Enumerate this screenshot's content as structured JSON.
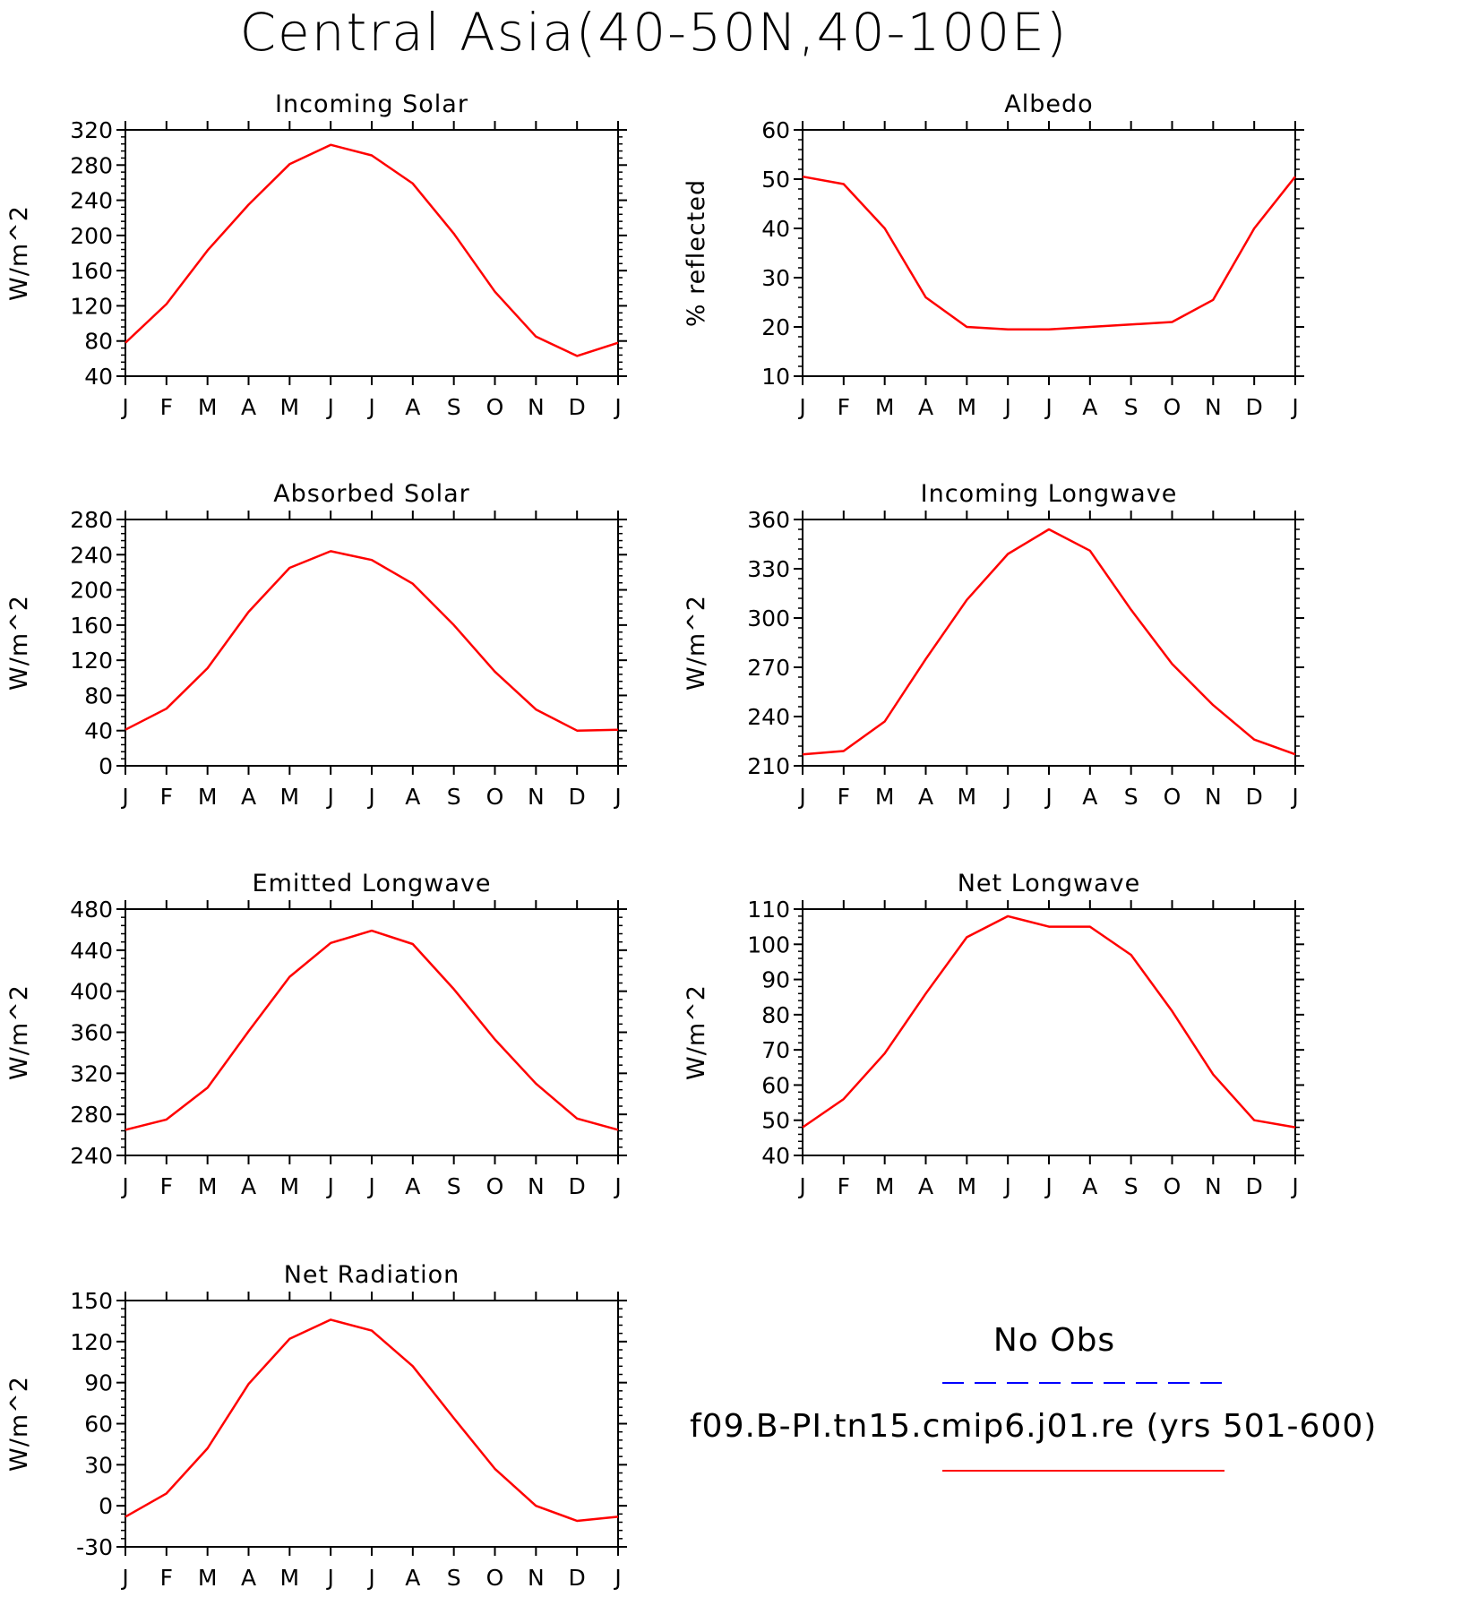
{
  "title": "Central Asia(40-50N,40-100E)",
  "months": [
    "J",
    "F",
    "M",
    "A",
    "M",
    "J",
    "J",
    "A",
    "S",
    "O",
    "N",
    "D",
    "J"
  ],
  "colors": {
    "series": "#ff0000",
    "obs": "#0000ff",
    "axis": "#000000"
  },
  "legend": {
    "obs_label": "No Obs",
    "model_label": "f09.B-PI.tn15.cmip6.j01.re (yrs 501-600)"
  },
  "chart_data": [
    {
      "type": "line",
      "title": "Incoming Solar",
      "ylabel": "W/m^2",
      "ylim": [
        40,
        320
      ],
      "yticks": [
        40,
        80,
        120,
        160,
        200,
        240,
        280,
        320
      ],
      "categories": [
        "J",
        "F",
        "M",
        "A",
        "M",
        "J",
        "J",
        "A",
        "S",
        "O",
        "N",
        "D",
        "J"
      ],
      "values": [
        78,
        122,
        183,
        235,
        281,
        303,
        291,
        259,
        202,
        136,
        85,
        63,
        78
      ]
    },
    {
      "type": "line",
      "title": "Albedo",
      "ylabel": "% reflected",
      "ylim": [
        10,
        60
      ],
      "yticks": [
        10,
        20,
        30,
        40,
        50,
        60
      ],
      "categories": [
        "J",
        "F",
        "M",
        "A",
        "M",
        "J",
        "J",
        "A",
        "S",
        "O",
        "N",
        "D",
        "J"
      ],
      "values": [
        50.5,
        49.0,
        40.0,
        26.0,
        20.0,
        19.5,
        19.5,
        20.0,
        20.5,
        21.0,
        25.5,
        40.0,
        50.5
      ]
    },
    {
      "type": "line",
      "title": "Absorbed Solar",
      "ylabel": "W/m^2",
      "ylim": [
        0,
        280
      ],
      "yticks": [
        0,
        40,
        80,
        120,
        160,
        200,
        240,
        280
      ],
      "categories": [
        "J",
        "F",
        "M",
        "A",
        "M",
        "J",
        "J",
        "A",
        "S",
        "O",
        "N",
        "D",
        "J"
      ],
      "values": [
        41,
        65,
        111,
        175,
        225,
        244,
        234,
        207,
        160,
        107,
        64,
        40,
        41
      ]
    },
    {
      "type": "line",
      "title": "Incoming Longwave",
      "ylabel": "W/m^2",
      "ylim": [
        210,
        360
      ],
      "yticks": [
        210,
        240,
        270,
        300,
        330,
        360
      ],
      "categories": [
        "J",
        "F",
        "M",
        "A",
        "M",
        "J",
        "J",
        "A",
        "S",
        "O",
        "N",
        "D",
        "J"
      ],
      "values": [
        217,
        219,
        237,
        275,
        311,
        339,
        354,
        341,
        305,
        272,
        247,
        226,
        217
      ]
    },
    {
      "type": "line",
      "title": "Emitted Longwave",
      "ylabel": "W/m^2",
      "ylim": [
        240,
        480
      ],
      "yticks": [
        240,
        280,
        320,
        360,
        400,
        440,
        480
      ],
      "categories": [
        "J",
        "F",
        "M",
        "A",
        "M",
        "J",
        "J",
        "A",
        "S",
        "O",
        "N",
        "D",
        "J"
      ],
      "values": [
        265,
        275,
        306,
        361,
        414,
        447,
        459,
        446,
        402,
        353,
        310,
        276,
        265
      ]
    },
    {
      "type": "line",
      "title": "Net Longwave",
      "ylabel": "W/m^2",
      "ylim": [
        40,
        110
      ],
      "yticks": [
        40,
        50,
        60,
        70,
        80,
        90,
        100,
        110
      ],
      "categories": [
        "J",
        "F",
        "M",
        "A",
        "M",
        "J",
        "J",
        "A",
        "S",
        "O",
        "N",
        "D",
        "J"
      ],
      "values": [
        48,
        56,
        69,
        86,
        102,
        108,
        105,
        105,
        97,
        81,
        63,
        50,
        48
      ]
    },
    {
      "type": "line",
      "title": "Net Radiation",
      "ylabel": "W/m^2",
      "ylim": [
        -30,
        150
      ],
      "yticks": [
        -30,
        0,
        30,
        60,
        90,
        120,
        150
      ],
      "categories": [
        "J",
        "F",
        "M",
        "A",
        "M",
        "J",
        "J",
        "A",
        "S",
        "O",
        "N",
        "D",
        "J"
      ],
      "values": [
        -8,
        9,
        42,
        89,
        122,
        136,
        128,
        102,
        64,
        27,
        0,
        -11,
        -8
      ]
    }
  ]
}
